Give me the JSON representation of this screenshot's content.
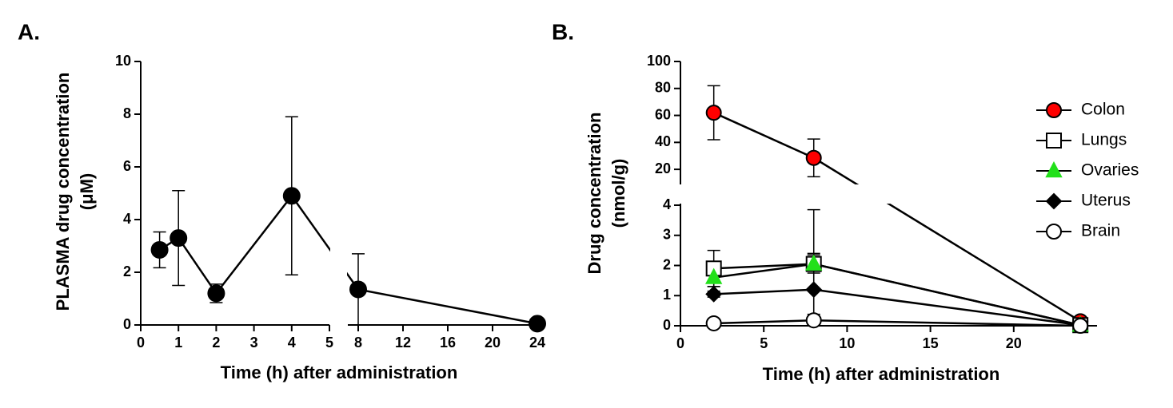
{
  "chart_data": [
    {
      "type": "line",
      "panel_label": "A.",
      "xlabel": "Time (h) after administration",
      "ylabel": [
        "PLASMA drug concentration",
        "(μM)"
      ],
      "x": [
        0.5,
        1,
        2,
        4,
        8,
        24
      ],
      "xlim": [
        0,
        24
      ],
      "xbreak": [
        5,
        8
      ],
      "xticks": [
        0,
        1,
        2,
        3,
        4,
        5,
        8,
        12,
        16,
        20,
        24
      ],
      "ylim": [
        0,
        10
      ],
      "yticks": [
        0,
        2,
        4,
        6,
        8,
        10
      ],
      "series": [
        {
          "color": "#000000",
          "marker": "circle",
          "values": [
            2.85,
            3.3,
            1.2,
            4.9,
            1.35,
            0.05
          ],
          "errors": [
            0.68,
            1.8,
            0.35,
            3.0,
            1.35,
            0.05
          ]
        }
      ]
    },
    {
      "type": "line",
      "panel_label": "B.",
      "xlabel": "Time (h) after administration",
      "ylabel": [
        "Drug concentration",
        "(nmol/g)"
      ],
      "x": [
        2,
        8,
        24
      ],
      "xlim": [
        0,
        25
      ],
      "xticks": [
        0,
        5,
        10,
        15,
        20
      ],
      "ylim": [
        0,
        100
      ],
      "ybreak": [
        4,
        10
      ],
      "yticks": [
        0,
        1,
        2,
        3,
        4,
        20,
        40,
        60,
        80,
        100
      ],
      "legend": "right",
      "series": [
        {
          "name": "Colon",
          "color": "#ff0000",
          "marker": "circle",
          "values": [
            62,
            28.5,
            0.15
          ],
          "errors": [
            20,
            14,
            0.05
          ]
        },
        {
          "name": "Lungs",
          "color": "#ffffff",
          "marker": "square",
          "values": [
            1.9,
            2.05,
            0.02
          ],
          "errors": [
            0.6,
            0.3,
            0.01
          ]
        },
        {
          "name": "Ovaries",
          "color": "#22e01a",
          "marker": "triangle",
          "values": [
            1.6,
            2.05,
            0.02
          ],
          "errors": [
            0.3,
            1.8,
            0.01
          ]
        },
        {
          "name": "Uterus",
          "color": "#000000",
          "marker": "diamond",
          "values": [
            1.05,
            1.2,
            0.02
          ],
          "errors": [
            0.1,
            1.2,
            0.01
          ]
        },
        {
          "name": "Brain",
          "color": "#ffffff",
          "marker": "circle",
          "values": [
            0.08,
            0.18,
            0.0
          ],
          "errors": [
            0.05,
            0.2,
            0.01
          ]
        }
      ]
    }
  ]
}
